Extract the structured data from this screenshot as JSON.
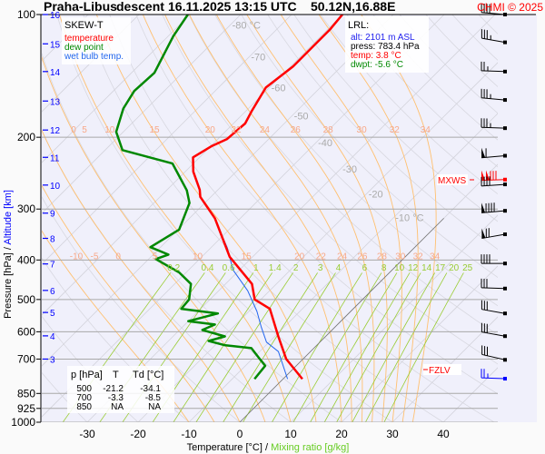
{
  "header": {
    "station": "Praha-Libus",
    "mode": "descent",
    "datetime": "16.11.2025 13:15 UTC",
    "coords": "50.12N,16.88E",
    "copyright": "CHMI © 2025"
  },
  "legend": {
    "title": "SKEW-T",
    "temperature": "temperature",
    "dew_point": "dew point",
    "wet_bulb": "wet bulb temp."
  },
  "lrl": {
    "title": "LRL:",
    "alt": "alt: 2101 m ASL",
    "press": "press: 783.4 hPa",
    "temp": "temp: 3.8 °C",
    "dwpt": "dwpt: -5.6 °C"
  },
  "table": {
    "headers": [
      "p [hPa]",
      "T",
      "Td [°C]"
    ],
    "rows": [
      [
        "500",
        "-21.2",
        "-34.1"
      ],
      [
        "700",
        "-3.3",
        "-8.5"
      ],
      [
        "850",
        "NA",
        "NA"
      ]
    ]
  },
  "markers": {
    "mxws": "MXWS",
    "fzlv": "FZLV"
  },
  "colors": {
    "temperature": "#ff0000",
    "dew_point": "#008800",
    "wet_bulb": "#2266ee",
    "altitude": "#0000ff",
    "moist_adiabat": "#ffc070",
    "moist_label": "#f8a888",
    "mixing_ratio": "#99cc33",
    "isotherm": "#cfcfdf",
    "plot_bg": "#f0f0fb"
  },
  "chart_data": {
    "type": "skew-t",
    "xlabel": "Temperature [°C]",
    "xlabel2": "Mixing ratio [g/kg]",
    "ylabel": "Pressure [hPa]",
    "ylabel2": "Altitude [km]",
    "y_scale": "log",
    "ylim": [
      1000,
      100
    ],
    "x_ticks": [
      "-30",
      "-20",
      "-10",
      "0",
      "10",
      "20",
      "30",
      "40"
    ],
    "pressure_ticks": [
      "100",
      "200",
      "300",
      "400",
      "500",
      "600",
      "700",
      "850",
      "925",
      "1000"
    ],
    "altitude_ticks": [
      {
        "km": "16",
        "p": 100
      },
      {
        "km": "15",
        "p": 118
      },
      {
        "km": "14",
        "p": 138
      },
      {
        "km": "13",
        "p": 163
      },
      {
        "km": "12",
        "p": 192
      },
      {
        "km": "11",
        "p": 224
      },
      {
        "km": "10",
        "p": 262
      },
      {
        "km": "9",
        "p": 307
      },
      {
        "km": "8",
        "p": 354
      },
      {
        "km": "7",
        "p": 409
      },
      {
        "km": "6",
        "p": 475
      },
      {
        "km": "5",
        "p": 538
      },
      {
        "km": "4",
        "p": 614
      },
      {
        "km": "3",
        "p": 700
      }
    ],
    "isotherm_labels": [
      {
        "t": -80,
        "label": "-80 °C",
        "p": 106
      },
      {
        "t": -70,
        "label": "-70",
        "p": 127
      },
      {
        "t": -60,
        "label": "-60",
        "p": 151
      },
      {
        "t": -50,
        "label": "-50",
        "p": 177
      },
      {
        "t": -40,
        "label": "-40",
        "p": 206
      },
      {
        "t": -30,
        "label": "-30",
        "p": 239
      },
      {
        "t": -20,
        "label": "-20",
        "p": 275
      },
      {
        "t": -10,
        "label": "-10 °C",
        "p": 315
      }
    ],
    "moist_adiabats_upper": [
      "0",
      "5",
      "10",
      "15",
      "20",
      "22",
      "24",
      "26",
      "28",
      "30",
      "32",
      "34"
    ],
    "moist_adiabats_lower": [
      "-10",
      "-5",
      "0",
      "5",
      "10",
      "15",
      "20",
      "22",
      "24",
      "26",
      "28",
      "30",
      "32",
      "34"
    ],
    "mixing_ratios": [
      "0.2",
      "0.4",
      "0.6",
      "1",
      "1.4",
      "2",
      "3",
      "4",
      "6",
      "8",
      "10",
      "12",
      "14",
      "17",
      "20",
      "25"
    ],
    "grid": true,
    "series": [
      {
        "name": "temperature",
        "points": [
          [
            100,
            -60.0
          ],
          [
            109,
            -59.5
          ],
          [
            118,
            -59.5
          ],
          [
            134,
            -59.5
          ],
          [
            151,
            -60.7
          ],
          [
            173,
            -58.8
          ],
          [
            185,
            -57.7
          ],
          [
            202,
            -58.2
          ],
          [
            210,
            -59.8
          ],
          [
            224,
            -61.3
          ],
          [
            243,
            -58.4
          ],
          [
            269,
            -53.6
          ],
          [
            280,
            -52.1
          ],
          [
            316,
            -45.0
          ],
          [
            393,
            -34.5
          ],
          [
            458,
            -24.8
          ],
          [
            500,
            -21.2
          ],
          [
            527,
            -16.4
          ],
          [
            616,
            -9.3
          ],
          [
            700,
            -3.3
          ],
          [
            783.4,
            3.8
          ]
        ]
      },
      {
        "name": "dew point",
        "points": [
          [
            100,
            -90.4
          ],
          [
            113,
            -89.0
          ],
          [
            139,
            -85.5
          ],
          [
            154,
            -85.9
          ],
          [
            170,
            -84.6
          ],
          [
            194,
            -81.4
          ],
          [
            215,
            -76.6
          ],
          [
            232,
            -64.1
          ],
          [
            270,
            -56.0
          ],
          [
            290,
            -53.0
          ],
          [
            337,
            -49.8
          ],
          [
            372,
            -52.0
          ],
          [
            388,
            -47.0
          ],
          [
            398,
            -48.6
          ],
          [
            429,
            -41.4
          ],
          [
            458,
            -36.8
          ],
          [
            500,
            -34.1
          ],
          [
            527,
            -33.8
          ],
          [
            541,
            -25.7
          ],
          [
            565,
            -30.0
          ],
          [
            576,
            -24.1
          ],
          [
            594,
            -25.5
          ],
          [
            616,
            -19.8
          ],
          [
            632,
            -22.1
          ],
          [
            647,
            -18.2
          ],
          [
            658,
            -12.3
          ],
          [
            700,
            -8.5
          ],
          [
            727,
            -6.1
          ],
          [
            783.4,
            -5.6
          ]
        ]
      },
      {
        "name": "wet bulb temp.",
        "points": [
          [
            320,
            -44.5
          ],
          [
            373,
            -36.8
          ],
          [
            423,
            -31.3
          ],
          [
            476,
            -24.3
          ],
          [
            535,
            -18.4
          ],
          [
            583,
            -14.6
          ],
          [
            636,
            -10.5
          ],
          [
            671,
            -6.3
          ],
          [
            783.4,
            0.9
          ]
        ]
      }
    ],
    "wind": [
      {
        "p": 100,
        "speed_kt": 40,
        "dir": 275
      },
      {
        "p": 117,
        "speed_kt": 35,
        "dir": 280
      },
      {
        "p": 138,
        "speed_kt": 25,
        "dir": 272
      },
      {
        "p": 162,
        "speed_kt": 35,
        "dir": 275
      },
      {
        "p": 190,
        "speed_kt": 35,
        "dir": 272
      },
      {
        "p": 222,
        "speed_kt": 60,
        "dir": 265
      },
      {
        "p": 254,
        "speed_kt": 130,
        "dir": 268,
        "max": true
      },
      {
        "p": 261,
        "speed_kt": 40,
        "dir": 266
      },
      {
        "p": 303,
        "speed_kt": 90,
        "dir": 265
      },
      {
        "p": 346,
        "speed_kt": 70,
        "dir": 260
      },
      {
        "p": 408,
        "speed_kt": 40,
        "dir": 270
      },
      {
        "p": 470,
        "speed_kt": 30,
        "dir": 272
      },
      {
        "p": 541,
        "speed_kt": 30,
        "dir": 280
      },
      {
        "p": 615,
        "speed_kt": 30,
        "dir": 280
      },
      {
        "p": 703,
        "speed_kt": 30,
        "dir": 283
      },
      {
        "p": 782,
        "speed_kt": 25,
        "dir": 272,
        "lrl": true
      }
    ],
    "markers": [
      {
        "label": "MXWS",
        "p": 254
      },
      {
        "label": "FZLV",
        "p": 778
      }
    ]
  }
}
